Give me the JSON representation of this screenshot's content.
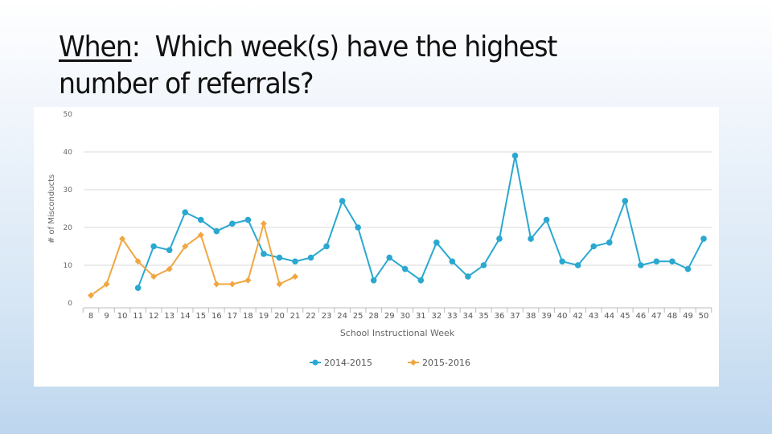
{
  "slide": {
    "title_keyword": "When",
    "title_sep": ":",
    "title_rest_line1": "Which week(s) have the highest",
    "title_line2": "number of referrals?"
  },
  "chart_data": {
    "type": "line",
    "title": "",
    "xlabel": "School Instructional Week",
    "ylabel": "# of Misconducts",
    "ylim": [
      0,
      50
    ],
    "yticks": [
      0,
      10,
      20,
      30,
      40,
      50
    ],
    "grid": true,
    "legend_position": "bottom",
    "categories": [
      "8",
      "9",
      "10",
      "11",
      "12",
      "13",
      "14",
      "15",
      "16",
      "17",
      "18",
      "19",
      "20",
      "21",
      "22",
      "23",
      "24",
      "25",
      "28",
      "29",
      "30",
      "31",
      "32",
      "33",
      "34",
      "35",
      "36",
      "37",
      "38",
      "39",
      "40",
      "42",
      "43",
      "44",
      "45",
      "46",
      "47",
      "48",
      "49",
      "50"
    ],
    "series": [
      {
        "name": "2014-2015",
        "color": "#2aa8d0",
        "marker": "circle",
        "values": [
          null,
          null,
          null,
          4,
          15,
          14,
          24,
          22,
          19,
          21,
          22,
          13,
          12,
          11,
          12,
          15,
          27,
          20,
          6,
          12,
          9,
          6,
          16,
          11,
          7,
          10,
          17,
          39,
          17,
          22,
          11,
          10,
          15,
          16,
          27,
          10,
          11,
          11,
          9,
          17
        ]
      },
      {
        "name": "2015-2016",
        "color": "#f0a742",
        "marker": "diamond",
        "values": [
          2,
          5,
          17,
          11,
          7,
          9,
          15,
          18,
          5,
          5,
          6,
          21,
          5,
          7,
          null,
          null,
          null,
          null,
          null,
          null,
          null,
          null,
          null,
          null,
          null,
          null,
          null,
          null,
          null,
          null,
          null,
          null,
          null,
          null,
          null,
          null,
          null,
          null,
          null,
          null
        ]
      }
    ]
  },
  "legend": {
    "s1": "2014-2015",
    "s2": "2015-2016"
  }
}
